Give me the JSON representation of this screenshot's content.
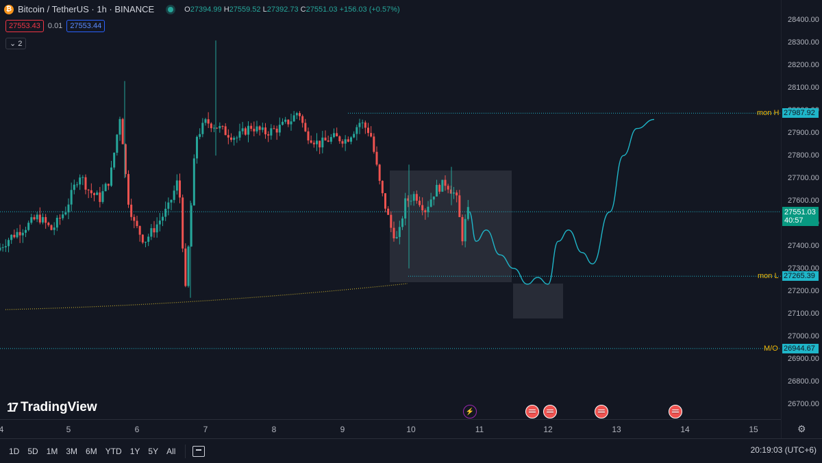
{
  "legend": {
    "symbol_icon": "bitcoin-icon",
    "title": "Bitcoin / TetherUS · 1h · BINANCE",
    "open_key": "O",
    "open": "27394.99",
    "high_key": "H",
    "high": "27559.52",
    "low_key": "L",
    "low": "27392.73",
    "close_key": "C",
    "close": "27551.03",
    "change": "+156.03 (+0.57%)"
  },
  "bidask": {
    "bid": "27553.43",
    "spread": "0.01",
    "ask": "27553.44"
  },
  "indicators_toggle": "2",
  "price_axis": [
    "28400.00",
    "28300.00",
    "28200.00",
    "28100.00",
    "28000.00",
    "27900.00",
    "27800.00",
    "27700.00",
    "27600.00",
    "27500.00",
    "27400.00",
    "27300.00",
    "27200.00",
    "27100.00",
    "27000.00",
    "26900.00",
    "26800.00",
    "26700.00"
  ],
  "price_tags": {
    "mon_h": {
      "label": "mon H",
      "value": "27987.92"
    },
    "current": {
      "value": "27551.03",
      "countdown": "40:57"
    },
    "mon_l": {
      "label": "mon L",
      "value": "27265.39"
    },
    "mo": {
      "label": "M/O",
      "value": "26944.67"
    }
  },
  "time_axis": [
    "4",
    "5",
    "6",
    "7",
    "8",
    "9",
    "10",
    "11",
    "12",
    "13",
    "14",
    "15"
  ],
  "brand": "TradingView",
  "toolbar": {
    "ranges": [
      "1D",
      "5D",
      "1M",
      "3M",
      "6M",
      "YTD",
      "1Y",
      "5Y",
      "All"
    ],
    "clock": "20:19:03 (UTC+6)"
  },
  "colors": {
    "up": "#26a69a",
    "down": "#ef5350",
    "projection": "#1fb6c9",
    "level": "#1fb6c9",
    "trend": "#b8a22e"
  },
  "chart_data": {
    "type": "candlestick",
    "symbol": "BTCUSDT",
    "timeframe": "1h",
    "ylim": [
      26650,
      28450
    ],
    "x_tick_labels": [
      "4",
      "5",
      "6",
      "7",
      "8",
      "9",
      "10",
      "11",
      "12",
      "13",
      "14",
      "15"
    ],
    "levels": [
      {
        "name": "mon H",
        "value": 27987.92
      },
      {
        "name": "mon L",
        "value": 27265.39
      },
      {
        "name": "M/O",
        "value": 26944.67
      }
    ],
    "current_price": 27551.03,
    "anchors": [
      [
        4.0,
        27380
      ],
      [
        4.2,
        27440
      ],
      [
        4.4,
        27480
      ],
      [
        4.6,
        27530
      ],
      [
        4.8,
        27470
      ],
      [
        5.0,
        27560
      ],
      [
        5.2,
        27720
      ],
      [
        5.35,
        27640
      ],
      [
        5.5,
        27610
      ],
      [
        5.65,
        27700
      ],
      [
        5.8,
        27990
      ],
      [
        5.9,
        27620
      ],
      [
        6.0,
        27500
      ],
      [
        6.15,
        27420
      ],
      [
        6.3,
        27480
      ],
      [
        6.5,
        27570
      ],
      [
        6.65,
        27700
      ],
      [
        6.75,
        27200
      ],
      [
        6.9,
        27880
      ],
      [
        7.05,
        27950
      ],
      [
        7.2,
        27930
      ],
      [
        7.35,
        27900
      ],
      [
        7.5,
        27880
      ],
      [
        7.7,
        27930
      ],
      [
        7.9,
        27900
      ],
      [
        8.1,
        27920
      ],
      [
        8.3,
        27960
      ],
      [
        8.4,
        28000
      ],
      [
        8.5,
        27900
      ],
      [
        8.7,
        27850
      ],
      [
        8.9,
        27880
      ],
      [
        9.1,
        27870
      ],
      [
        9.3,
        27950
      ],
      [
        9.45,
        27900
      ],
      [
        9.6,
        27650
      ],
      [
        9.75,
        27480
      ],
      [
        9.85,
        27420
      ],
      [
        9.95,
        27590
      ],
      [
        10.1,
        27630
      ],
      [
        10.25,
        27560
      ],
      [
        10.4,
        27650
      ],
      [
        10.55,
        27680
      ],
      [
        10.7,
        27620
      ],
      [
        10.8,
        27420
      ],
      [
        10.85,
        27551
      ]
    ],
    "projection": [
      [
        10.85,
        27551
      ],
      [
        10.95,
        27420
      ],
      [
        11.1,
        27470
      ],
      [
        11.3,
        27360
      ],
      [
        11.5,
        27300
      ],
      [
        11.7,
        27230
      ],
      [
        11.85,
        27260
      ],
      [
        12.0,
        27230
      ],
      [
        12.15,
        27420
      ],
      [
        12.3,
        27470
      ],
      [
        12.5,
        27370
      ],
      [
        12.65,
        27320
      ],
      [
        12.9,
        27550
      ],
      [
        13.1,
        27800
      ],
      [
        13.3,
        27920
      ],
      [
        13.55,
        27960
      ]
    ]
  }
}
